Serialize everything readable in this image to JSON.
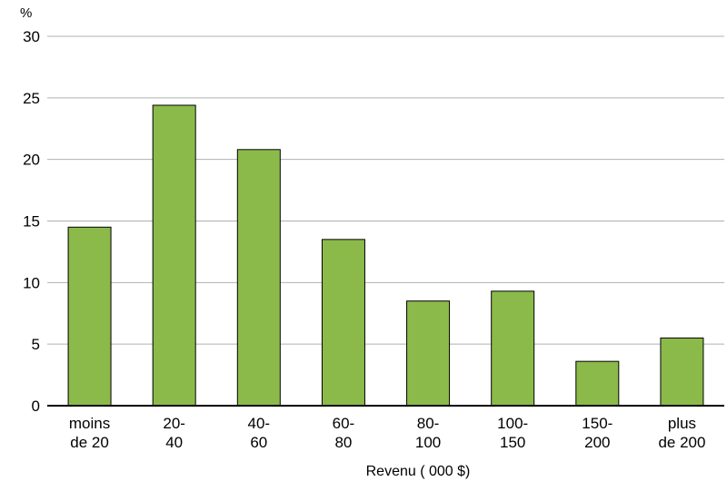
{
  "chart_data": {
    "type": "bar",
    "y_label": "%",
    "x_label": "Revenu ( 000 $)",
    "categories": [
      "moins\nde 20",
      "20-\n40",
      "40-\n60",
      "60-\n80",
      "80-\n100",
      "100-\n150",
      "150-\n200",
      "plus\nde 200"
    ],
    "values": [
      14.5,
      24.4,
      20.8,
      13.5,
      8.5,
      9.3,
      3.6,
      5.5
    ],
    "color": "#8bba4a",
    "ylim": [
      0,
      30
    ],
    "yticks": [
      0,
      5,
      10,
      15,
      20,
      25,
      30
    ],
    "grid": true
  }
}
